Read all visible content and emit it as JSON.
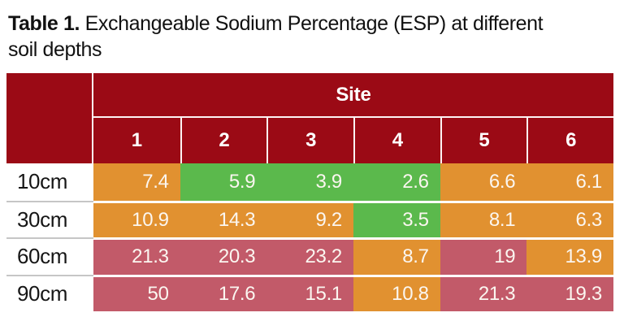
{
  "title": {
    "prefix": "Table 1.",
    "line1": " Exchangeable Sodium Percentage (ESP) at different",
    "line2": "soil depths"
  },
  "table": {
    "site_header": "Site",
    "site_columns": [
      "1",
      "2",
      "3",
      "4",
      "5",
      "6"
    ],
    "row_labels": [
      "10cm",
      "30cm",
      "60cm",
      "90cm"
    ],
    "rows": [
      [
        "7.4",
        "5.9",
        "3.9",
        "2.6",
        "6.6",
        "6.1"
      ],
      [
        "10.9",
        "14.3",
        "9.2",
        "3.5",
        "8.1",
        "6.3"
      ],
      [
        "21.3",
        "20.3",
        "23.2",
        "8.7",
        "19",
        "13.9"
      ],
      [
        "50",
        "17.6",
        "15.1",
        "10.8",
        "21.3",
        "19.3"
      ]
    ],
    "cell_colors": [
      [
        "orange",
        "green",
        "green",
        "green",
        "orange",
        "orange"
      ],
      [
        "orange",
        "orange",
        "orange",
        "green",
        "orange",
        "orange"
      ],
      [
        "rose",
        "rose",
        "rose",
        "orange",
        "rose",
        "orange"
      ],
      [
        "rose",
        "rose",
        "rose",
        "orange",
        "rose",
        "rose"
      ]
    ]
  },
  "palette": {
    "header_maroon": "#9B0A15",
    "orange": "#E19130",
    "green": "#5BB94C",
    "rose": "#C25A69",
    "label_divider": "#C6C6C6",
    "header_text": "#FFFFFF",
    "value_text": "#FBF6F0",
    "label_text": "#161616"
  },
  "chart_data": {
    "type": "table",
    "title": "Table 1. Exchangeable Sodium Percentage (ESP) at different soil depths",
    "column_group": "Site",
    "columns": [
      "1",
      "2",
      "3",
      "4",
      "5",
      "6"
    ],
    "row_labels": [
      "10cm",
      "30cm",
      "60cm",
      "90cm"
    ],
    "values": [
      [
        7.4,
        5.9,
        3.9,
        2.6,
        6.6,
        6.1
      ],
      [
        10.9,
        14.3,
        9.2,
        3.5,
        8.1,
        6.3
      ],
      [
        21.3,
        20.3,
        23.2,
        8.7,
        19,
        13.9
      ],
      [
        50,
        17.6,
        15.1,
        10.8,
        21.3,
        19.3
      ]
    ],
    "cell_color_categories": [
      [
        "orange",
        "green",
        "green",
        "green",
        "orange",
        "orange"
      ],
      [
        "orange",
        "orange",
        "orange",
        "green",
        "orange",
        "orange"
      ],
      [
        "rose",
        "rose",
        "rose",
        "orange",
        "rose",
        "orange"
      ],
      [
        "rose",
        "rose",
        "rose",
        "orange",
        "rose",
        "rose"
      ]
    ],
    "legend_position": "none",
    "notes": "Cell background encodes ESP severity: green = low, orange = medium, rose = high"
  }
}
